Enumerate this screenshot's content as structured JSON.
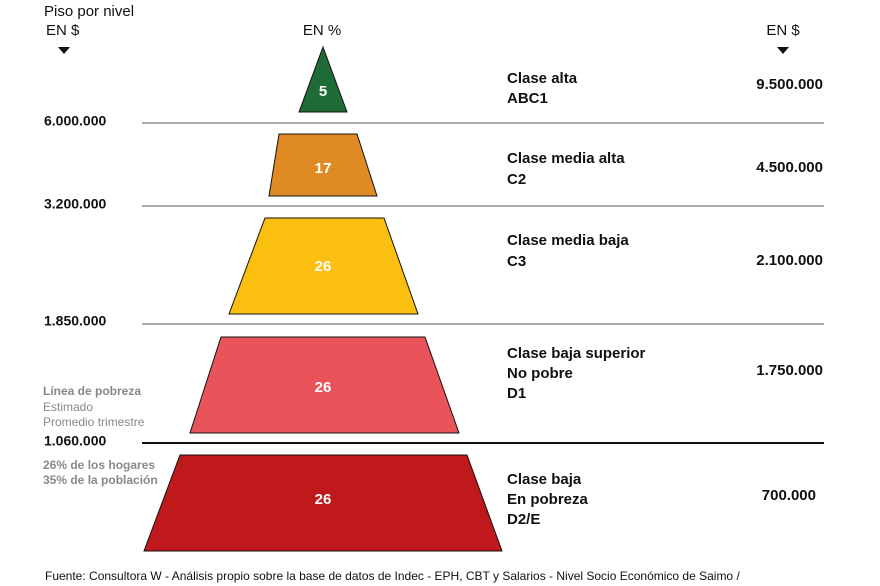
{
  "header": {
    "title": "Piso por nivel",
    "left_unit": "EN $",
    "center_unit": "EN %",
    "right_unit": "EN $"
  },
  "levels": [
    {
      "percent": "5",
      "class_lines": [
        "Clase alta",
        "ABC1"
      ],
      "amount": "9.500.000"
    },
    {
      "percent": "17",
      "class_lines": [
        "Clase media alta",
        "C2"
      ],
      "amount": "4.500.000"
    },
    {
      "percent": "26",
      "class_lines": [
        "Clase media baja",
        "C3"
      ],
      "amount": "2.100.000"
    },
    {
      "percent": "26",
      "class_lines": [
        "Clase baja superior",
        "No pobre",
        "D1"
      ],
      "amount": "1.750.000"
    },
    {
      "percent": "26",
      "class_lines": [
        "Clase baja",
        "En pobreza",
        "D2/E"
      ],
      "amount": "700.000"
    }
  ],
  "floors": [
    "6.000.000",
    "3.200.000",
    "1.850.000",
    "1.060.000"
  ],
  "poverty_note": {
    "title": "Línea de pobreza",
    "lines": [
      "Estimado",
      "Promedio trimestre"
    ]
  },
  "poverty_stats": [
    "26% de los hogares",
    "35% de la población"
  ],
  "footer": "Fuente: Consultora W - Análisis propio sobre la base de datos de Indec - EPH, CBT y Salarios - Nivel Socio Económico de Saimo /"
}
